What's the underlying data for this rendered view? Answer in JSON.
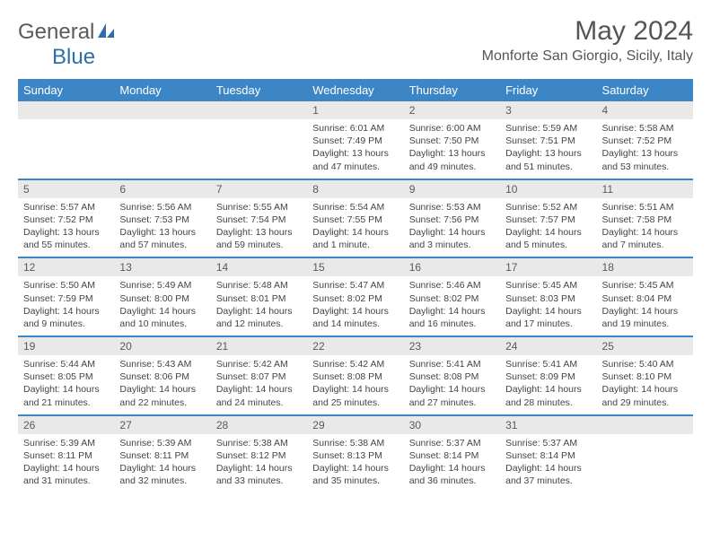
{
  "logo": {
    "text1": "General",
    "text2": "Blue"
  },
  "title": "May 2024",
  "location": "Monforte San Giorgio, Sicily, Italy",
  "colors": {
    "header_bg": "#3d86c6",
    "header_text": "#ffffff",
    "daynum_bg": "#e9e9e9",
    "border": "#3d86c6",
    "logo_accent": "#2f6fa8"
  },
  "weekdays": [
    "Sunday",
    "Monday",
    "Tuesday",
    "Wednesday",
    "Thursday",
    "Friday",
    "Saturday"
  ],
  "weeks": [
    [
      null,
      null,
      null,
      {
        "n": "1",
        "sr": "Sunrise: 6:01 AM",
        "ss": "Sunset: 7:49 PM",
        "dl": "Daylight: 13 hours and 47 minutes."
      },
      {
        "n": "2",
        "sr": "Sunrise: 6:00 AM",
        "ss": "Sunset: 7:50 PM",
        "dl": "Daylight: 13 hours and 49 minutes."
      },
      {
        "n": "3",
        "sr": "Sunrise: 5:59 AM",
        "ss": "Sunset: 7:51 PM",
        "dl": "Daylight: 13 hours and 51 minutes."
      },
      {
        "n": "4",
        "sr": "Sunrise: 5:58 AM",
        "ss": "Sunset: 7:52 PM",
        "dl": "Daylight: 13 hours and 53 minutes."
      }
    ],
    [
      {
        "n": "5",
        "sr": "Sunrise: 5:57 AM",
        "ss": "Sunset: 7:52 PM",
        "dl": "Daylight: 13 hours and 55 minutes."
      },
      {
        "n": "6",
        "sr": "Sunrise: 5:56 AM",
        "ss": "Sunset: 7:53 PM",
        "dl": "Daylight: 13 hours and 57 minutes."
      },
      {
        "n": "7",
        "sr": "Sunrise: 5:55 AM",
        "ss": "Sunset: 7:54 PM",
        "dl": "Daylight: 13 hours and 59 minutes."
      },
      {
        "n": "8",
        "sr": "Sunrise: 5:54 AM",
        "ss": "Sunset: 7:55 PM",
        "dl": "Daylight: 14 hours and 1 minute."
      },
      {
        "n": "9",
        "sr": "Sunrise: 5:53 AM",
        "ss": "Sunset: 7:56 PM",
        "dl": "Daylight: 14 hours and 3 minutes."
      },
      {
        "n": "10",
        "sr": "Sunrise: 5:52 AM",
        "ss": "Sunset: 7:57 PM",
        "dl": "Daylight: 14 hours and 5 minutes."
      },
      {
        "n": "11",
        "sr": "Sunrise: 5:51 AM",
        "ss": "Sunset: 7:58 PM",
        "dl": "Daylight: 14 hours and 7 minutes."
      }
    ],
    [
      {
        "n": "12",
        "sr": "Sunrise: 5:50 AM",
        "ss": "Sunset: 7:59 PM",
        "dl": "Daylight: 14 hours and 9 minutes."
      },
      {
        "n": "13",
        "sr": "Sunrise: 5:49 AM",
        "ss": "Sunset: 8:00 PM",
        "dl": "Daylight: 14 hours and 10 minutes."
      },
      {
        "n": "14",
        "sr": "Sunrise: 5:48 AM",
        "ss": "Sunset: 8:01 PM",
        "dl": "Daylight: 14 hours and 12 minutes."
      },
      {
        "n": "15",
        "sr": "Sunrise: 5:47 AM",
        "ss": "Sunset: 8:02 PM",
        "dl": "Daylight: 14 hours and 14 minutes."
      },
      {
        "n": "16",
        "sr": "Sunrise: 5:46 AM",
        "ss": "Sunset: 8:02 PM",
        "dl": "Daylight: 14 hours and 16 minutes."
      },
      {
        "n": "17",
        "sr": "Sunrise: 5:45 AM",
        "ss": "Sunset: 8:03 PM",
        "dl": "Daylight: 14 hours and 17 minutes."
      },
      {
        "n": "18",
        "sr": "Sunrise: 5:45 AM",
        "ss": "Sunset: 8:04 PM",
        "dl": "Daylight: 14 hours and 19 minutes."
      }
    ],
    [
      {
        "n": "19",
        "sr": "Sunrise: 5:44 AM",
        "ss": "Sunset: 8:05 PM",
        "dl": "Daylight: 14 hours and 21 minutes."
      },
      {
        "n": "20",
        "sr": "Sunrise: 5:43 AM",
        "ss": "Sunset: 8:06 PM",
        "dl": "Daylight: 14 hours and 22 minutes."
      },
      {
        "n": "21",
        "sr": "Sunrise: 5:42 AM",
        "ss": "Sunset: 8:07 PM",
        "dl": "Daylight: 14 hours and 24 minutes."
      },
      {
        "n": "22",
        "sr": "Sunrise: 5:42 AM",
        "ss": "Sunset: 8:08 PM",
        "dl": "Daylight: 14 hours and 25 minutes."
      },
      {
        "n": "23",
        "sr": "Sunrise: 5:41 AM",
        "ss": "Sunset: 8:08 PM",
        "dl": "Daylight: 14 hours and 27 minutes."
      },
      {
        "n": "24",
        "sr": "Sunrise: 5:41 AM",
        "ss": "Sunset: 8:09 PM",
        "dl": "Daylight: 14 hours and 28 minutes."
      },
      {
        "n": "25",
        "sr": "Sunrise: 5:40 AM",
        "ss": "Sunset: 8:10 PM",
        "dl": "Daylight: 14 hours and 29 minutes."
      }
    ],
    [
      {
        "n": "26",
        "sr": "Sunrise: 5:39 AM",
        "ss": "Sunset: 8:11 PM",
        "dl": "Daylight: 14 hours and 31 minutes."
      },
      {
        "n": "27",
        "sr": "Sunrise: 5:39 AM",
        "ss": "Sunset: 8:11 PM",
        "dl": "Daylight: 14 hours and 32 minutes."
      },
      {
        "n": "28",
        "sr": "Sunrise: 5:38 AM",
        "ss": "Sunset: 8:12 PM",
        "dl": "Daylight: 14 hours and 33 minutes."
      },
      {
        "n": "29",
        "sr": "Sunrise: 5:38 AM",
        "ss": "Sunset: 8:13 PM",
        "dl": "Daylight: 14 hours and 35 minutes."
      },
      {
        "n": "30",
        "sr": "Sunrise: 5:37 AM",
        "ss": "Sunset: 8:14 PM",
        "dl": "Daylight: 14 hours and 36 minutes."
      },
      {
        "n": "31",
        "sr": "Sunrise: 5:37 AM",
        "ss": "Sunset: 8:14 PM",
        "dl": "Daylight: 14 hours and 37 minutes."
      },
      null
    ]
  ]
}
